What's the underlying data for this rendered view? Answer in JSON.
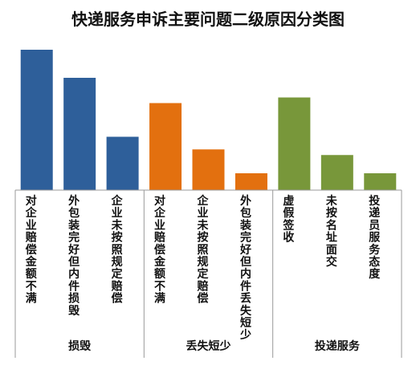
{
  "chart_data": {
    "type": "bar",
    "title": "快递服务申诉主要问题二级原因分类图",
    "ylim": [
      0,
      100
    ],
    "grid": false,
    "legend": "none",
    "groups": [
      {
        "name": "损毁",
        "color": "#2E5F9A",
        "categories": [
          "对企业赔偿金额不满",
          "外包装完好但内件损毁",
          "企业未按照规定赔偿"
        ],
        "values": [
          100,
          80,
          38
        ]
      },
      {
        "name": "丢失短少",
        "color": "#E3700F",
        "categories": [
          "对企业赔偿金额不满",
          "企业未按照规定赔偿",
          "外包装完好但内件丢失短少"
        ],
        "values": [
          62,
          29,
          12
        ]
      },
      {
        "name": "投递服务",
        "color": "#78973A",
        "categories": [
          "虚假签收",
          "未按名址面交",
          "投递员服务态度"
        ],
        "values": [
          66,
          25,
          12
        ]
      }
    ]
  }
}
